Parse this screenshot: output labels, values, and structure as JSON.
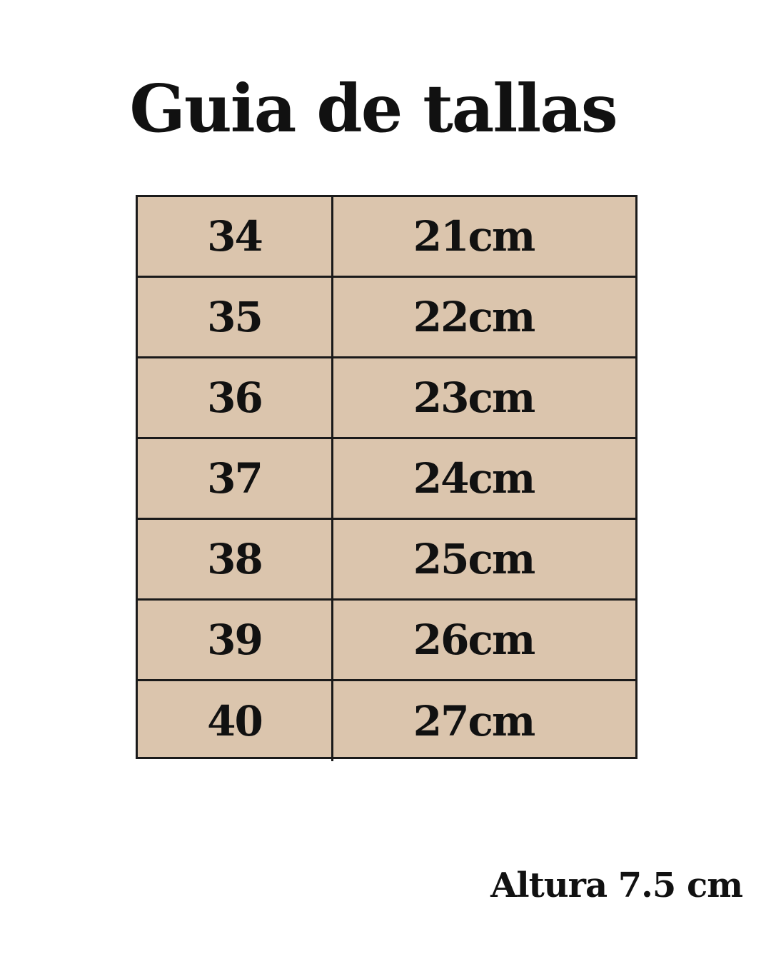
{
  "title": "Guia de tallas",
  "table": {
    "colors": {
      "cell_background": "#dbc5ad",
      "border": "#1a1a1a"
    },
    "rows": [
      {
        "size": "34",
        "length": "21cm"
      },
      {
        "size": "35",
        "length": "22cm"
      },
      {
        "size": "36",
        "length": "23cm"
      },
      {
        "size": "37",
        "length": "24cm"
      },
      {
        "size": "38",
        "length": "25cm"
      },
      {
        "size": "39",
        "length": "26cm"
      },
      {
        "size": "40",
        "length": "27cm"
      }
    ]
  },
  "note": "Altura 7.5 cm"
}
